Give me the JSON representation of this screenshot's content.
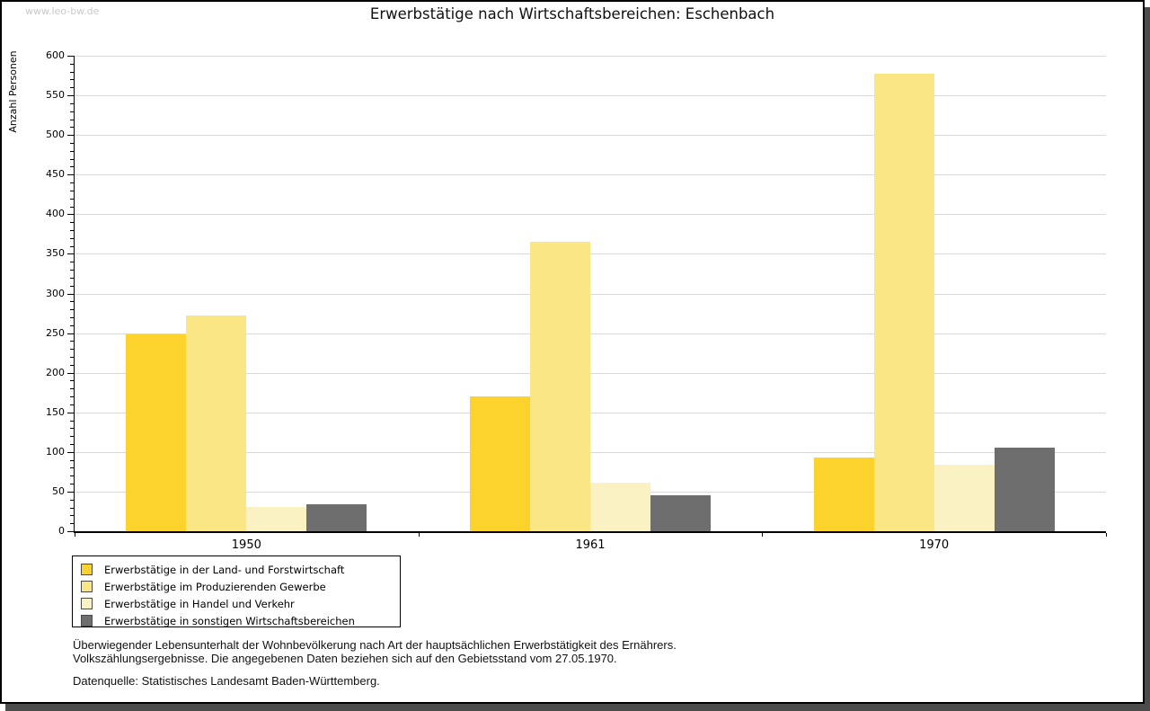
{
  "watermark": "www.leo-bw.de",
  "title": "Erwerbstätige nach Wirtschaftsbereichen: Eschenbach",
  "footer": {
    "line1": "Überwiegender Lebensunterhalt der Wohnbevölkerung nach Art der hauptsächlichen Erwerbstätigkeit des Ernährers.",
    "line2": "Volkszählungsergebnisse. Die angegebenen Daten beziehen sich auf den Gebietsstand vom 27.05.1970.",
    "source": "Datenquelle: Statistisches Landesamt Baden-Württemberg."
  },
  "chart_data": {
    "type": "bar",
    "title": "Erwerbstätige nach Wirtschaftsbereichen: Eschenbach",
    "xlabel": "",
    "ylabel": "Anzahl Personen",
    "ylim": [
      0,
      600
    ],
    "ytick_step": 50,
    "minor_tick_step": 10,
    "grid": true,
    "legend_position": "bottom-left",
    "categories": [
      "1950",
      "1961",
      "1970"
    ],
    "series": [
      {
        "name": "Erwerbstätige in der Land- und Forstwirtschaft",
        "color": "#fcd32d",
        "values": [
          248,
          170,
          93
        ]
      },
      {
        "name": "Erwerbstätige im Produzierenden Gewerbe",
        "color": "#fae685",
        "values": [
          272,
          365,
          577
        ]
      },
      {
        "name": "Erwerbstätige in Handel und Verkehr",
        "color": "#fbf2c4",
        "values": [
          31,
          61,
          84
        ]
      },
      {
        "name": "Erwerbstätige in sonstigen Wirtschaftsbereichen",
        "color": "#6e6e6e",
        "values": [
          34,
          45,
          106
        ]
      }
    ]
  }
}
